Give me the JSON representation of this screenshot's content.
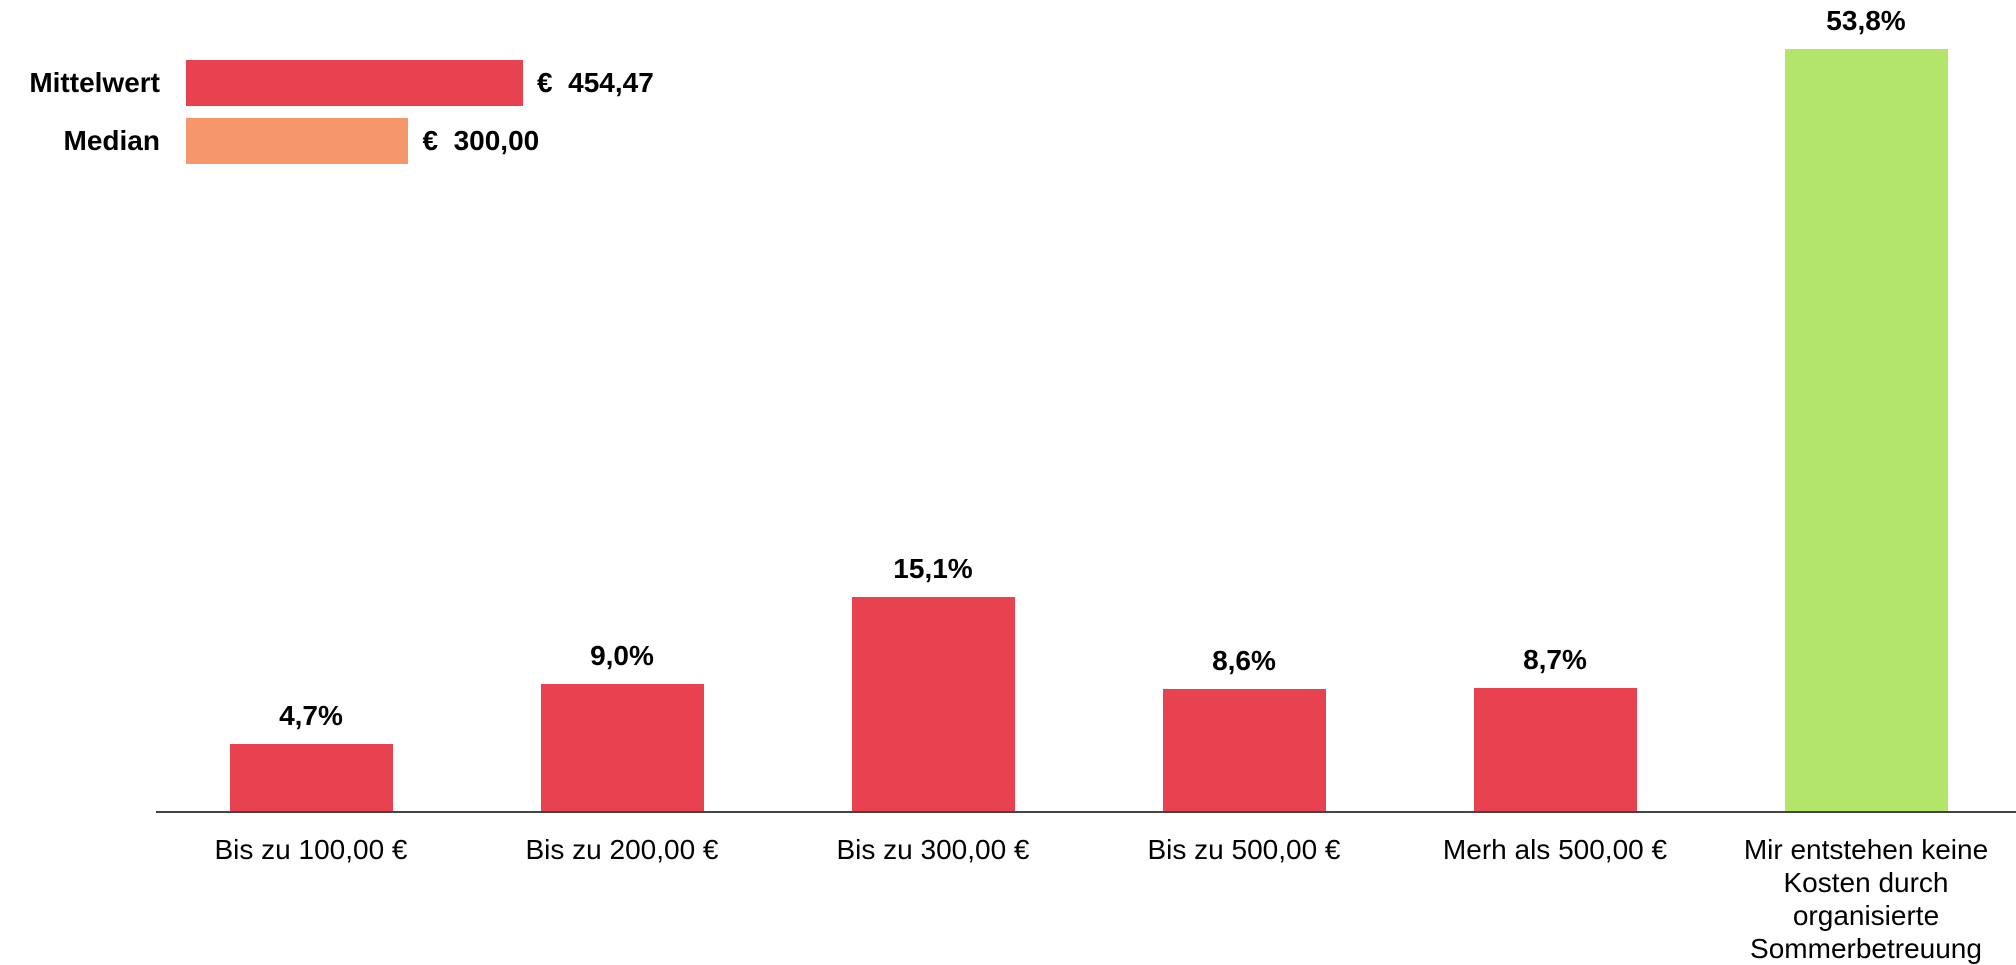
{
  "chart_data": {
    "type": "bar",
    "categories": [
      "Bis zu 100,00 €",
      "Bis zu 200,00 €",
      "Bis zu 300,00 €",
      "Bis zu 500,00 €",
      "Merh als 500,00 €",
      "Mir entstehen keine Kosten durch organisierte Sommerbetreuung"
    ],
    "values": [
      4.7,
      9.0,
      15.1,
      8.6,
      8.7,
      53.8
    ],
    "value_labels": [
      "4,7%",
      "9,0%",
      "15,1%",
      "8,6%",
      "8,7%",
      "53,8%"
    ],
    "colors": [
      "#e8414f",
      "#e8414f",
      "#e8414f",
      "#e8414f",
      "#e8414f",
      "#b3e56a"
    ],
    "inset": {
      "type": "hbar",
      "categories": [
        "Mittelwert",
        "Median"
      ],
      "values": [
        454.47,
        300.0
      ],
      "value_labels": [
        "€  454,47",
        "€  300,00"
      ],
      "colors": [
        "#e8414f",
        "#f5976a"
      ]
    }
  }
}
